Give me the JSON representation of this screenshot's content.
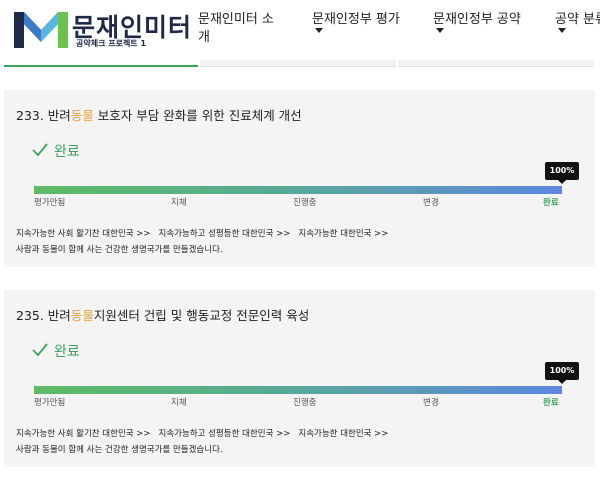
{
  "header": {
    "logo_title": "문재인미터",
    "logo_sub": "공약체크 프로젝트 1",
    "nav": [
      {
        "label": "문재인미터 소개",
        "has_caret": false
      },
      {
        "label": "문재인정부 평가",
        "has_caret": true
      },
      {
        "label": "문재인정부 공약",
        "has_caret": true
      },
      {
        "label": "공약 분류",
        "has_caret": true
      }
    ]
  },
  "colors": {
    "accent_green": "#3aa55d",
    "highlight_orange": "#e3a13b",
    "logo_navy": "#1f2a4a"
  },
  "cards": [
    {
      "number_prefix": "233. 반려",
      "highlight": "동물",
      "title_rest": " 보호자 부담 완화를 위한 진료체계 개선",
      "status_icon": "check-icon",
      "status": "완료",
      "progress_label": "100%",
      "progress": 1.0,
      "stages": [
        "평가안됨",
        "지체",
        "진행중",
        "변경",
        "완료"
      ],
      "current_stage": "완료",
      "goals": [
        "지속가능한 사회 활기찬 대한민국 >>",
        "지속가능하고 성평등한 대한민국 >>",
        "지속가능한 대한민국 >>"
      ],
      "description": "사람과 동물이 함께 사는 건강한 생명국가를 만들겠습니다."
    },
    {
      "number_prefix": "235. 반려",
      "highlight": "동물",
      "title_rest": "지원센터 건립 및 행동교정 전문인력 육성",
      "status_icon": "check-icon",
      "status": "완료",
      "progress_label": "100%",
      "progress": 1.0,
      "stages": [
        "평가안됨",
        "지체",
        "진행중",
        "변경",
        "완료"
      ],
      "current_stage": "완료",
      "goals": [
        "지속가능한 사회 활기찬 대한민국 >>",
        "지속가능하고 성평등한 대한민국 >>",
        "지속가능한 대한민국 >>"
      ],
      "description": "사람과 동물이 함께 사는 건강한 생명국가를 만들겠습니다."
    }
  ]
}
